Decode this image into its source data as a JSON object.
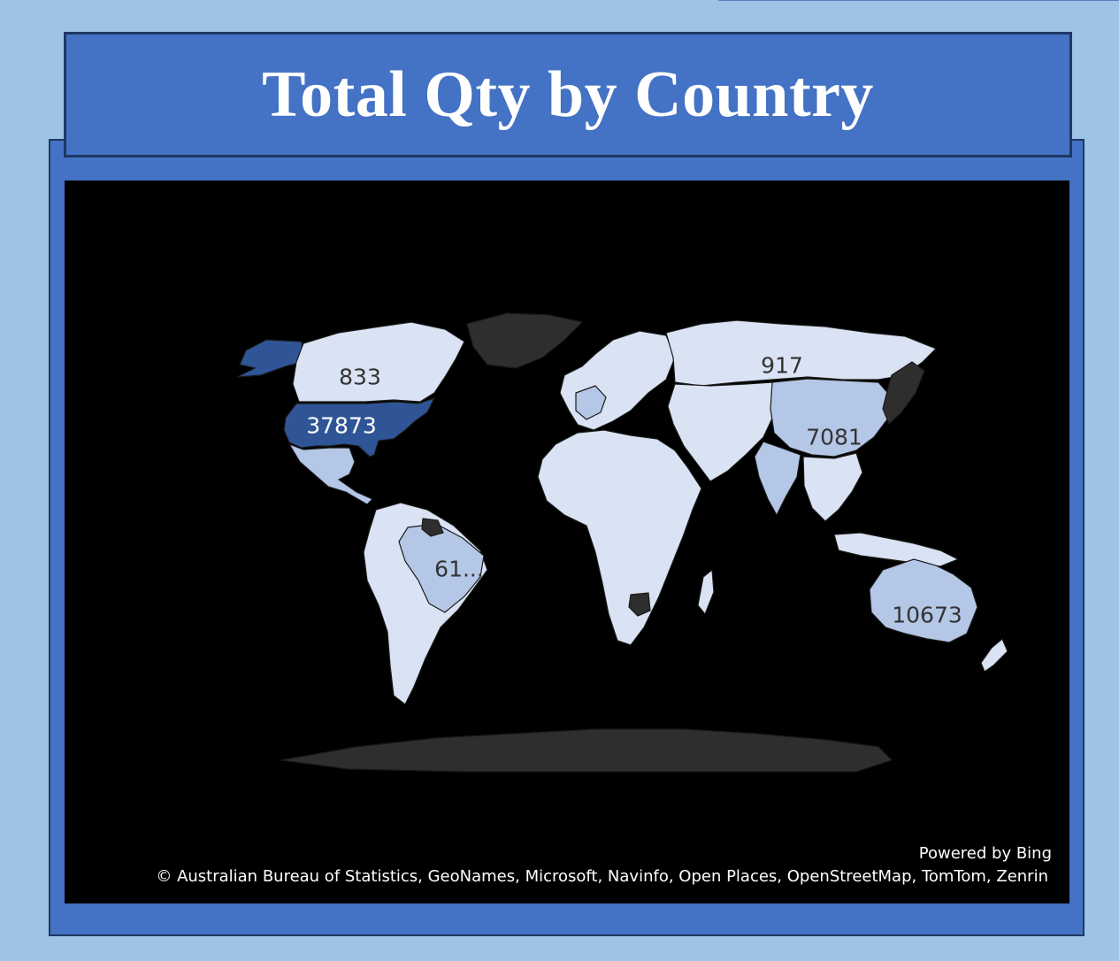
{
  "title": "Total Qty by Country",
  "map": {
    "labels": {
      "usa": "37873",
      "canada": "833",
      "russia": "917",
      "china": "7081",
      "brazil": "61...",
      "australia": "10673"
    },
    "credits": {
      "powered_by": "Powered by Bing",
      "copyright": "© Australian Bureau of Statistics, GeoNames, Microsoft, Navinfo, Open Places, OpenStreetMap, TomTom, Zenrin"
    },
    "colors": {
      "background": "#000000",
      "high": "#2f5597",
      "mid": "#b4c7e7",
      "low": "#dae3f3",
      "no_data": "#2e2e2e"
    }
  }
}
